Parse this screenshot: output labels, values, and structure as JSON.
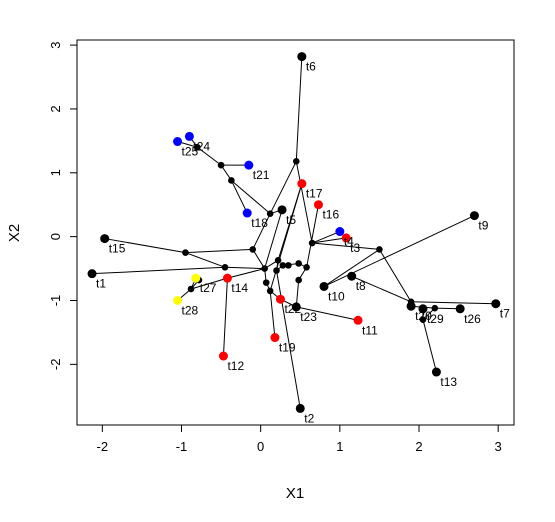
{
  "chart_data": {
    "type": "scatter",
    "title": "",
    "xlabel": "X1",
    "ylabel": "X2",
    "xlim": [
      -2.32,
      3.2
    ],
    "ylim": [
      -2.95,
      3.08
    ],
    "xticks": [
      -2,
      -1,
      0,
      1,
      2,
      3
    ],
    "yticks": [
      -2,
      -1,
      0,
      1,
      2,
      3
    ],
    "xtick_labels": [
      "-2",
      "-1",
      "0",
      "1",
      "2",
      "3"
    ],
    "ytick_labels": [
      "-2",
      "-1",
      "0",
      "1",
      "2",
      "3"
    ],
    "colors": {
      "black": "#000000",
      "red": "#ff0000",
      "blue": "#0000ff",
      "yellow": "#ffff00"
    },
    "points": [
      {
        "label": "t1",
        "x": -2.13,
        "y": -0.58,
        "color": "black"
      },
      {
        "label": "t2",
        "x": 0.5,
        "y": -2.69,
        "color": "black"
      },
      {
        "label": "t3",
        "x": 1.08,
        "y": -0.02,
        "color": "red"
      },
      {
        "label": "t4",
        "x": 1.0,
        "y": 0.08,
        "color": "blue"
      },
      {
        "label": "t5",
        "x": 0.27,
        "y": 0.42,
        "color": "black"
      },
      {
        "label": "t6",
        "x": 0.52,
        "y": 2.82,
        "color": "black"
      },
      {
        "label": "t7",
        "x": 2.97,
        "y": -1.05,
        "color": "black"
      },
      {
        "label": "t8",
        "x": 1.15,
        "y": -0.62,
        "color": "black"
      },
      {
        "label": "t9",
        "x": 2.7,
        "y": 0.33,
        "color": "black"
      },
      {
        "label": "t10",
        "x": 0.8,
        "y": -0.78,
        "color": "black"
      },
      {
        "label": "t11",
        "x": 1.23,
        "y": -1.31,
        "color": "red"
      },
      {
        "label": "t12",
        "x": -0.47,
        "y": -1.87,
        "color": "red"
      },
      {
        "label": "t13",
        "x": 2.22,
        "y": -2.12,
        "color": "black"
      },
      {
        "label": "t14",
        "x": -0.42,
        "y": -0.65,
        "color": "red"
      },
      {
        "label": "t15",
        "x": -1.97,
        "y": -0.03,
        "color": "black"
      },
      {
        "label": "t16",
        "x": 0.73,
        "y": 0.5,
        "color": "red"
      },
      {
        "label": "t17",
        "x": 0.52,
        "y": 0.83,
        "color": "red"
      },
      {
        "label": "t18",
        "x": -0.17,
        "y": 0.37,
        "color": "blue"
      },
      {
        "label": "t19",
        "x": 0.18,
        "y": -1.58,
        "color": "red"
      },
      {
        "label": "t20",
        "x": 1.9,
        "y": -1.09,
        "color": "black"
      },
      {
        "label": "t21",
        "x": -0.15,
        "y": 1.12,
        "color": "blue"
      },
      {
        "label": "t22",
        "x": 0.25,
        "y": -0.98,
        "color": "red"
      },
      {
        "label": "t23",
        "x": 0.45,
        "y": -1.1,
        "color": "black"
      },
      {
        "label": "t24",
        "x": -0.9,
        "y": 1.57,
        "color": "blue"
      },
      {
        "label": "t25",
        "x": -1.05,
        "y": 1.49,
        "color": "blue"
      },
      {
        "label": "t26",
        "x": 2.52,
        "y": -1.13,
        "color": "black"
      },
      {
        "label": "t27",
        "x": -0.82,
        "y": -0.65,
        "color": "yellow"
      },
      {
        "label": "t28",
        "x": -1.05,
        "y": -1.0,
        "color": "yellow"
      },
      {
        "label": "t29",
        "x": 2.05,
        "y": -1.13,
        "color": "black"
      }
    ],
    "internal_nodes": [
      [
        0.45,
        1.18
      ],
      [
        0.12,
        0.36
      ],
      [
        -0.1,
        -0.2
      ],
      [
        0.05,
        -0.5
      ],
      [
        0.35,
        -0.45
      ],
      [
        0.65,
        -0.1
      ],
      [
        1.5,
        -0.2
      ],
      [
        0.48,
        -0.42
      ],
      [
        0.58,
        -0.48
      ],
      [
        0.2,
        -0.53
      ],
      [
        0.28,
        -0.45
      ],
      [
        0.22,
        -0.37
      ],
      [
        1.9,
        -1.02
      ],
      [
        2.05,
        -1.3
      ],
      [
        2.2,
        -1.12
      ],
      [
        -0.5,
        1.12
      ],
      [
        -0.37,
        0.88
      ],
      [
        -0.8,
        1.4
      ],
      [
        -0.95,
        -0.25
      ],
      [
        -0.45,
        -0.48
      ],
      [
        0.07,
        -0.72
      ],
      [
        0.12,
        -0.85
      ],
      [
        0.48,
        -0.68
      ],
      [
        -0.88,
        -0.82
      ],
      [
        -0.78,
        -0.68
      ]
    ],
    "edges": [
      [
        [
          0.52,
          2.82
        ],
        [
          0.45,
          1.18
        ]
      ],
      [
        [
          0.45,
          1.18
        ],
        [
          0.12,
          0.36
        ]
      ],
      [
        [
          0.45,
          1.18
        ],
        [
          0.65,
          -0.1
        ]
      ],
      [
        [
          0.12,
          0.36
        ],
        [
          -0.1,
          -0.2
        ]
      ],
      [
        [
          0.12,
          0.36
        ],
        [
          0.27,
          0.42
        ]
      ],
      [
        [
          0.27,
          0.42
        ],
        [
          0.05,
          -0.5
        ]
      ],
      [
        [
          -0.1,
          -0.2
        ],
        [
          -0.95,
          -0.25
        ]
      ],
      [
        [
          -0.1,
          -0.2
        ],
        [
          0.05,
          -0.5
        ]
      ],
      [
        [
          -1.97,
          -0.03
        ],
        [
          -0.95,
          -0.25
        ]
      ],
      [
        [
          -0.95,
          -0.25
        ],
        [
          -0.45,
          -0.48
        ]
      ],
      [
        [
          -2.13,
          -0.58
        ],
        [
          -0.45,
          -0.48
        ]
      ],
      [
        [
          -0.45,
          -0.48
        ],
        [
          0.05,
          -0.5
        ]
      ],
      [
        [
          0.05,
          -0.5
        ],
        [
          0.22,
          -0.37
        ]
      ],
      [
        [
          0.22,
          -0.37
        ],
        [
          0.52,
          0.83
        ]
      ],
      [
        [
          0.52,
          0.83
        ],
        [
          0.12,
          -0.85
        ]
      ],
      [
        [
          0.22,
          -0.37
        ],
        [
          0.2,
          -0.53
        ]
      ],
      [
        [
          0.2,
          -0.53
        ],
        [
          0.28,
          -0.45
        ]
      ],
      [
        [
          0.28,
          -0.45
        ],
        [
          0.48,
          -0.42
        ]
      ],
      [
        [
          0.48,
          -0.42
        ],
        [
          0.58,
          -0.48
        ]
      ],
      [
        [
          0.58,
          -0.48
        ],
        [
          0.73,
          0.5
        ]
      ],
      [
        [
          0.58,
          -0.48
        ],
        [
          0.48,
          -0.68
        ]
      ],
      [
        [
          0.48,
          -0.68
        ],
        [
          0.45,
          -1.1
        ]
      ],
      [
        [
          0.45,
          -1.1
        ],
        [
          1.23,
          -1.31
        ]
      ],
      [
        [
          0.45,
          -1.1
        ],
        [
          0.25,
          -0.98
        ]
      ],
      [
        [
          0.2,
          -0.53
        ],
        [
          0.5,
          -2.69
        ]
      ],
      [
        [
          0.65,
          -0.1
        ],
        [
          1.5,
          -0.2
        ]
      ],
      [
        [
          0.65,
          -0.1
        ],
        [
          1.0,
          0.08
        ]
      ],
      [
        [
          0.65,
          -0.1
        ],
        [
          1.08,
          -0.02
        ]
      ],
      [
        [
          1.5,
          -0.2
        ],
        [
          1.9,
          -1.02
        ]
      ],
      [
        [
          1.5,
          -0.2
        ],
        [
          0.8,
          -0.78
        ]
      ],
      [
        [
          0.8,
          -0.78
        ],
        [
          2.7,
          0.33
        ]
      ],
      [
        [
          1.15,
          -0.62
        ],
        [
          1.9,
          -1.02
        ]
      ],
      [
        [
          1.9,
          -1.02
        ],
        [
          1.9,
          -1.09
        ]
      ],
      [
        [
          1.9,
          -1.02
        ],
        [
          2.97,
          -1.05
        ]
      ],
      [
        [
          1.9,
          -1.09
        ],
        [
          2.2,
          -1.12
        ]
      ],
      [
        [
          2.2,
          -1.12
        ],
        [
          2.52,
          -1.13
        ]
      ],
      [
        [
          2.2,
          -1.12
        ],
        [
          2.05,
          -1.3
        ]
      ],
      [
        [
          2.05,
          -1.3
        ],
        [
          2.05,
          -1.13
        ]
      ],
      [
        [
          2.05,
          -1.3
        ],
        [
          2.22,
          -2.12
        ]
      ],
      [
        [
          0.05,
          -0.5
        ],
        [
          0.07,
          -0.72
        ]
      ],
      [
        [
          0.07,
          -0.72
        ],
        [
          0.12,
          -0.85
        ]
      ],
      [
        [
          0.12,
          -0.85
        ],
        [
          0.18,
          -1.58
        ]
      ],
      [
        [
          0.12,
          -0.85
        ],
        [
          0.25,
          -0.98
        ]
      ],
      [
        [
          0.05,
          -0.5
        ],
        [
          -0.42,
          -0.65
        ]
      ],
      [
        [
          -0.42,
          -0.65
        ],
        [
          -0.47,
          -1.87
        ]
      ],
      [
        [
          -0.42,
          -0.65
        ],
        [
          -0.88,
          -0.82
        ]
      ],
      [
        [
          -0.88,
          -0.82
        ],
        [
          -0.82,
          -0.65
        ]
      ],
      [
        [
          -0.88,
          -0.82
        ],
        [
          -1.05,
          -1.0
        ]
      ],
      [
        [
          -0.88,
          -0.82
        ],
        [
          -0.78,
          -0.68
        ]
      ],
      [
        [
          0.12,
          0.36
        ],
        [
          -0.37,
          0.88
        ]
      ],
      [
        [
          -0.37,
          0.88
        ],
        [
          -0.17,
          0.37
        ]
      ],
      [
        [
          -0.37,
          0.88
        ],
        [
          -0.5,
          1.12
        ]
      ],
      [
        [
          -0.5,
          1.12
        ],
        [
          -0.15,
          1.12
        ]
      ],
      [
        [
          -0.5,
          1.12
        ],
        [
          -0.8,
          1.4
        ]
      ],
      [
        [
          -0.8,
          1.4
        ],
        [
          -0.9,
          1.57
        ]
      ],
      [
        [
          -0.8,
          1.4
        ],
        [
          -1.05,
          1.49
        ]
      ]
    ]
  }
}
